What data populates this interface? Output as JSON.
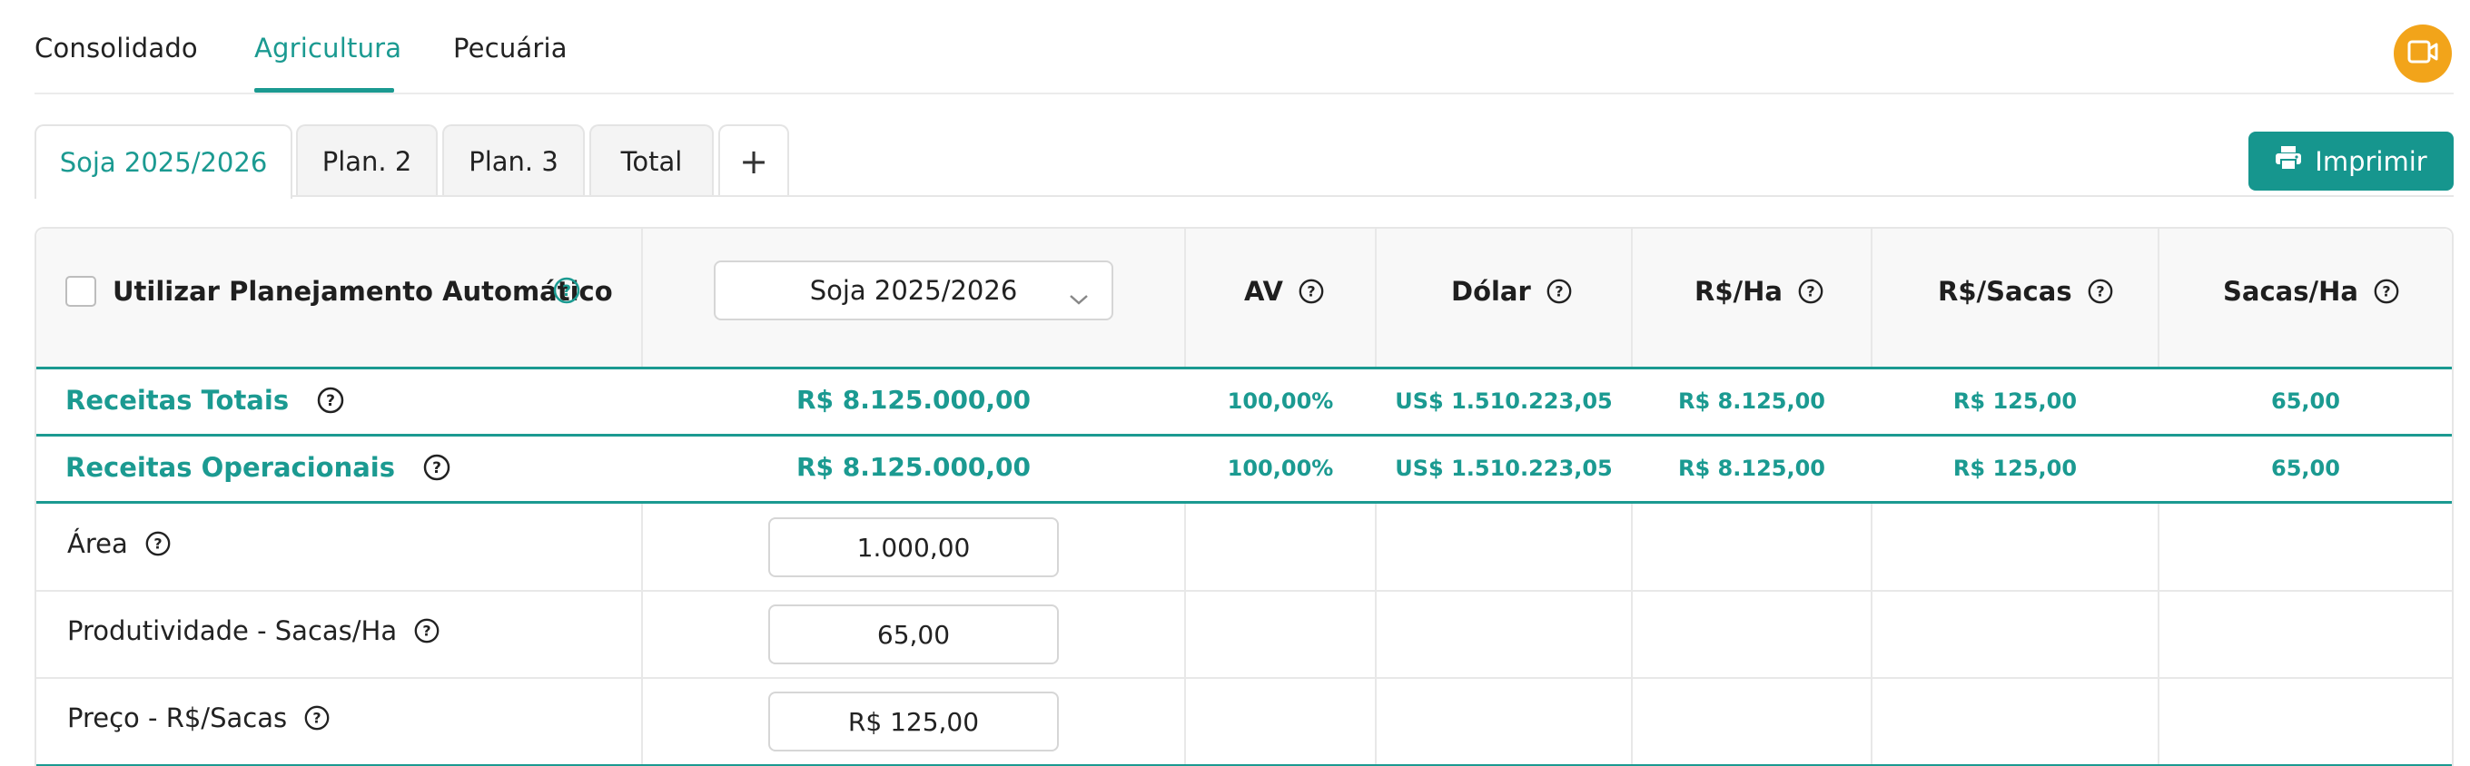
{
  "nav": {
    "tabs": [
      "Consolidado",
      "Agricultura",
      "Pecuária"
    ],
    "active_tab": "Agricultura"
  },
  "subtabs": [
    "Soja 2025/2026",
    "Plan. 2",
    "Plan. 3",
    "Total",
    "+"
  ],
  "print_button": "Imprimir",
  "table": {
    "auto_planning_label": "Utilizar Planejamento Automático",
    "auto_planning_checked": false,
    "plan_select_value": "Soja 2025/2026",
    "headers": [
      "AV",
      "Dólar",
      "R$/Ha",
      "R$/Sacas",
      "Sacas/Ha"
    ],
    "summary_rows": [
      {
        "label": "Receitas Totais",
        "total": "R$ 8.125.000,00",
        "av": "100,00%",
        "dolar": "US$ 1.510.223,05",
        "rs_ha": "R$ 8.125,00",
        "rs_sacas": "R$ 125,00",
        "sacas_ha": "65,00"
      },
      {
        "label": "Receitas Operacionais",
        "total": "R$ 8.125.000,00",
        "av": "100,00%",
        "dolar": "US$ 1.510.223,05",
        "rs_ha": "R$ 8.125,00",
        "rs_sacas": "R$ 125,00",
        "sacas_ha": "65,00"
      }
    ],
    "input_rows": [
      {
        "label": "Área",
        "value": "1.000,00"
      },
      {
        "label": "Produtividade - Sacas/Ha",
        "value": "65,00"
      },
      {
        "label": "Preço - R$/Sacas",
        "value": "R$ 125,00"
      }
    ]
  },
  "colors": {
    "accent": "#1b9a91",
    "print_button": "#16968e",
    "video_button": "#f2a41a"
  },
  "icons": {
    "video": "video-camera-icon",
    "print": "printer-icon",
    "help": "help-circle-icon",
    "chevron": "chevron-down-icon"
  }
}
